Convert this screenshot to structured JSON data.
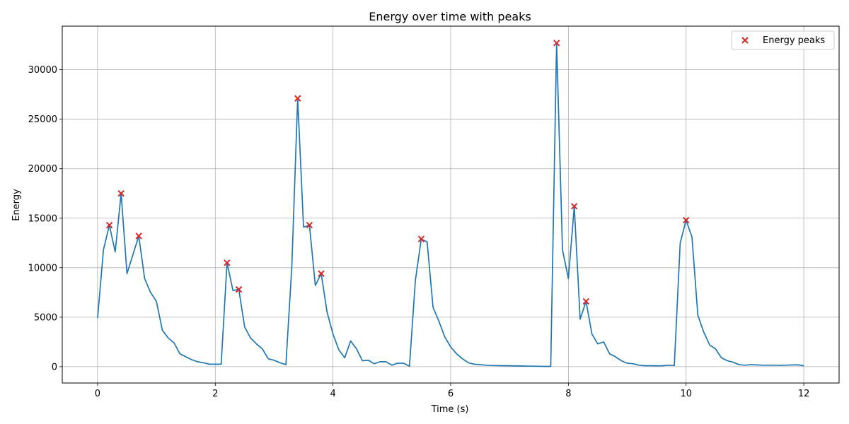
{
  "chart_data": {
    "type": "line",
    "title": "Energy over time with peaks",
    "xlabel": "Time (s)",
    "ylabel": "Energy",
    "xlim": [
      -0.6,
      12.6
    ],
    "ylim": [
      -1650,
      34400
    ],
    "xticks": [
      0,
      2,
      4,
      6,
      8,
      10,
      12
    ],
    "yticks": [
      0,
      5000,
      10000,
      15000,
      20000,
      25000,
      30000
    ],
    "grid": true,
    "legend_position": "top-right",
    "colors": {
      "line": "#1f77b4",
      "peaks": "#d62728",
      "grid": "#b0b0b0"
    },
    "series": [
      {
        "type": "line",
        "x": [
          0.0,
          0.1,
          0.2,
          0.3,
          0.4,
          0.5,
          0.6,
          0.7,
          0.8,
          0.9,
          1.0,
          1.1,
          1.2,
          1.3,
          1.4,
          1.5,
          1.6,
          1.7,
          1.8,
          1.9,
          2.0,
          2.1,
          2.2,
          2.3,
          2.4,
          2.5,
          2.6,
          2.7,
          2.8,
          2.9,
          3.0,
          3.1,
          3.2,
          3.3,
          3.4,
          3.5,
          3.6,
          3.7,
          3.8,
          3.9,
          4.0,
          4.1,
          4.2,
          4.3,
          4.4,
          4.5,
          4.6,
          4.7,
          4.8,
          4.9,
          5.0,
          5.1,
          5.2,
          5.3,
          5.4,
          5.5,
          5.6,
          5.7,
          5.8,
          5.9,
          6.0,
          6.1,
          6.2,
          6.3,
          6.4,
          6.5,
          6.6,
          6.7,
          6.8,
          6.9,
          7.0,
          7.1,
          7.2,
          7.3,
          7.4,
          7.5,
          7.6,
          7.7,
          7.8,
          7.9,
          8.0,
          8.1,
          8.2,
          8.3,
          8.4,
          8.5,
          8.6,
          8.7,
          8.8,
          8.9,
          9.0,
          9.1,
          9.2,
          9.3,
          9.4,
          9.5,
          9.6,
          9.7,
          9.8,
          9.9,
          10.0,
          10.1,
          10.2,
          10.3,
          10.4,
          10.5,
          10.6,
          10.7,
          10.8,
          10.9,
          11.0,
          11.1,
          11.2,
          11.3,
          11.4,
          11.5,
          11.6,
          11.7,
          11.8,
          11.9,
          12.0
        ],
        "y": [
          4900,
          11800,
          14300,
          11600,
          17500,
          9400,
          11300,
          13200,
          8900,
          7500,
          6600,
          3700,
          2900,
          2400,
          1300,
          1000,
          700,
          500,
          400,
          250,
          250,
          250,
          10500,
          7700,
          7800,
          4000,
          2900,
          2300,
          1800,
          800,
          650,
          400,
          200,
          10000,
          27100,
          14100,
          14300,
          8200,
          9400,
          5500,
          3300,
          1700,
          900,
          2600,
          1800,
          600,
          650,
          300,
          500,
          500,
          150,
          350,
          350,
          50,
          8700,
          12900,
          12600,
          6000,
          4600,
          3000,
          2000,
          1300,
          800,
          400,
          250,
          200,
          150,
          120,
          110,
          100,
          90,
          80,
          70,
          60,
          50,
          40,
          30,
          30,
          32700,
          11800,
          8900,
          16200,
          4800,
          6600,
          3300,
          2300,
          2500,
          1300,
          1000,
          600,
          350,
          300,
          150,
          100,
          100,
          90,
          100,
          150,
          120,
          12500,
          14800,
          13100,
          5200,
          3500,
          2200,
          1800,
          900,
          600,
          450,
          200,
          150,
          200,
          180,
          150,
          150,
          150,
          130,
          150,
          180,
          180,
          100
        ]
      },
      {
        "name": "Energy peaks",
        "type": "scatter",
        "x": [
          0.2,
          0.4,
          0.7,
          2.2,
          2.4,
          3.4,
          3.6,
          3.8,
          5.5,
          7.8,
          8.1,
          8.3,
          10.0
        ],
        "y": [
          14300,
          17500,
          13200,
          10500,
          7800,
          27100,
          14300,
          9400,
          12900,
          32700,
          16200,
          6600,
          14800
        ]
      }
    ]
  }
}
